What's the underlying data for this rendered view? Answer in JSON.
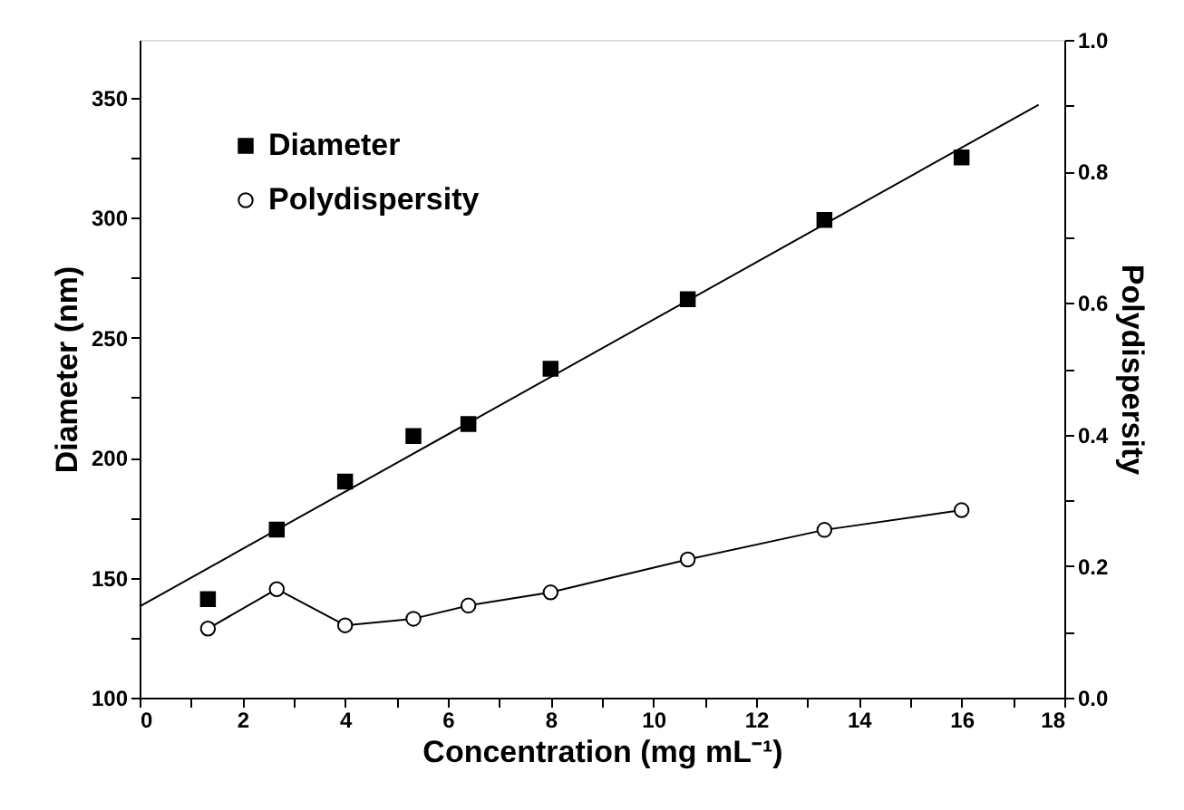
{
  "chart_data": {
    "type": "scatter",
    "xlabel": "Concentration (mg mL⁻¹)",
    "ylabel": "Diameter (nm)",
    "y2label": "Polydispersity",
    "x": [
      1.33,
      2.67,
      4,
      5.33,
      6.4,
      8,
      10.67,
      13.33,
      16
    ],
    "series": [
      {
        "name": "Diameter",
        "marker": "square",
        "color": "#000000",
        "values": [
          141,
          170,
          190,
          209,
          214,
          237,
          266,
          299,
          325
        ]
      },
      {
        "name": "Polydispersity",
        "type": "line",
        "marker": "circle",
        "line_style": "solid",
        "color": "#000000",
        "axis": "y2",
        "values": [
          0.105,
          0.165,
          0.11,
          0.12,
          0.14,
          0.16,
          0.21,
          0.255,
          0.285
        ]
      },
      {
        "type": "line",
        "line_style": "solid",
        "color": "#000000",
        "x": [
          0,
          17.5
        ],
        "values": [
          138,
          347
        ]
      }
    ],
    "xlim": [
      0,
      18
    ],
    "xticks": [
      0,
      {
        "value": 1,
        "label": null
      },
      2,
      {
        "value": 3,
        "label": null
      },
      4,
      {
        "value": 5,
        "label": null
      },
      6,
      {
        "value": 7,
        "label": null
      },
      8,
      {
        "value": 9,
        "label": null
      },
      10,
      {
        "value": 11,
        "label": null
      },
      12,
      {
        "value": 13,
        "label": null
      },
      14,
      {
        "value": 15,
        "label": null
      },
      16,
      {
        "value": 17,
        "label": null
      },
      18
    ],
    "ylim": [
      100,
      374
    ],
    "yticks": [
      100,
      {
        "value": 125,
        "label": null
      },
      150,
      {
        "value": 175,
        "label": null
      },
      200,
      {
        "value": 225,
        "label": null
      },
      250,
      {
        "value": 275,
        "label": null
      },
      300,
      {
        "value": 325,
        "label": null
      },
      350
    ],
    "y2lim": [
      0,
      1
    ],
    "y2ticks": [
      {
        "value": 0,
        "label": "0.0"
      },
      {
        "value": 0.1,
        "label": null
      },
      0.2,
      {
        "value": 0.3,
        "label": null
      },
      0.4,
      {
        "value": 0.5,
        "label": null
      },
      0.6,
      {
        "value": 0.7,
        "label": null
      },
      0.8,
      {
        "value": 0.9,
        "label": null
      },
      {
        "value": 1,
        "label": "1.0"
      }
    ],
    "grid": false,
    "legend": "top left"
  }
}
